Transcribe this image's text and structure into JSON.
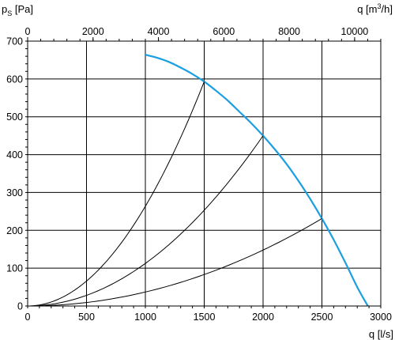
{
  "chart_data": {
    "type": "line",
    "grid": true,
    "x_axis": {
      "label": "q [l/s]",
      "range": [
        0,
        3000
      ],
      "ticks": [
        0,
        500,
        1000,
        1500,
        2000,
        2500,
        3000
      ],
      "minor_step": 100
    },
    "x2_axis": {
      "label_main": "q [m",
      "label_exp": "3",
      "label_end": "/h]",
      "position": "top",
      "ticks": [
        0,
        2000,
        4000,
        6000,
        8000,
        10000
      ],
      "range": [
        0,
        10800
      ]
    },
    "y_axis": {
      "label_main": "p",
      "label_sub": "S",
      "label_end": " [Pa]",
      "range": [
        0,
        700
      ],
      "ticks": [
        0,
        100,
        200,
        300,
        400,
        500,
        600,
        700
      ],
      "minor_step": 20
    },
    "series": [
      {
        "kind": "fan-curve",
        "color": "#1a9fe0",
        "x": [
          1000,
          1100,
          1200,
          1300,
          1400,
          1500,
          1600,
          1700,
          1800,
          1900,
          2000,
          2100,
          2200,
          2300,
          2400,
          2500,
          2600,
          2700,
          2800,
          2890
        ],
        "y": [
          664,
          656,
          645,
          630,
          613,
          593,
          569,
          543,
          513,
          483,
          450,
          414,
          375,
          331,
          283,
          231,
          175,
          114,
          50,
          0
        ]
      },
      {
        "kind": "system-curve",
        "color": "#000000",
        "endpoint": [
          1500,
          593
        ]
      },
      {
        "kind": "system-curve",
        "color": "#000000",
        "endpoint": [
          2000,
          450
        ]
      },
      {
        "kind": "system-curve",
        "color": "#000000",
        "endpoint": [
          2500,
          231
        ]
      }
    ]
  }
}
